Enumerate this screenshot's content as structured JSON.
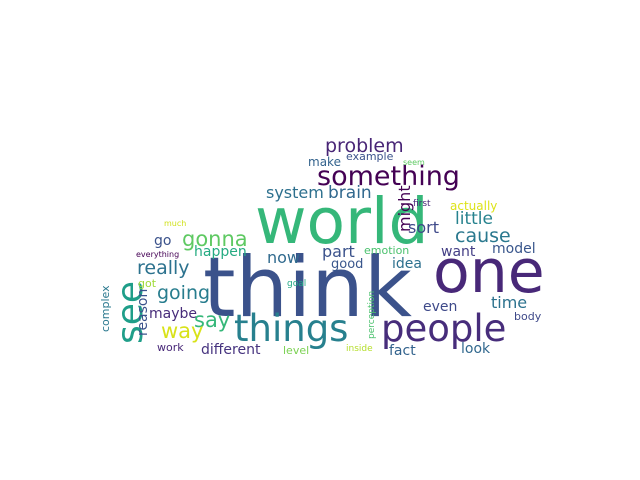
{
  "words": [
    {
      "text": "think",
      "color": "#3b528b",
      "orientation": "horizontal"
    },
    {
      "text": "world",
      "color": "#35b779",
      "orientation": "horizontal"
    },
    {
      "text": "one",
      "color": "#482878",
      "orientation": "horizontal"
    },
    {
      "text": "people",
      "color": "#472d7b",
      "orientation": "horizontal"
    },
    {
      "text": "things",
      "color": "#27808e",
      "orientation": "horizontal"
    },
    {
      "text": "see",
      "color": "#1f9e89",
      "orientation": "vertical"
    },
    {
      "text": "something",
      "color": "#440154",
      "orientation": "horizontal"
    },
    {
      "text": "problem",
      "color": "#482576",
      "orientation": "horizontal"
    },
    {
      "text": "gonna",
      "color": "#5ec962",
      "orientation": "horizontal"
    },
    {
      "text": "say",
      "color": "#35b779",
      "orientation": "horizontal"
    },
    {
      "text": "way",
      "color": "#d8e219",
      "orientation": "horizontal"
    },
    {
      "text": "really",
      "color": "#2c728e",
      "orientation": "horizontal"
    },
    {
      "text": "going",
      "color": "#287d8e",
      "orientation": "horizontal"
    },
    {
      "text": "cause",
      "color": "#2a788e",
      "orientation": "horizontal"
    },
    {
      "text": "little",
      "color": "#26828e",
      "orientation": "horizontal"
    },
    {
      "text": "brain",
      "color": "#31688e",
      "orientation": "horizontal"
    },
    {
      "text": "system",
      "color": "#2d708e",
      "orientation": "horizontal"
    },
    {
      "text": "might",
      "color": "#440154",
      "orientation": "vertical"
    },
    {
      "text": "sort",
      "color": "#3e4989",
      "orientation": "horizontal"
    },
    {
      "text": "part",
      "color": "#3b528b",
      "orientation": "horizontal"
    },
    {
      "text": "now",
      "color": "#306a8e",
      "orientation": "horizontal"
    },
    {
      "text": "time",
      "color": "#2c728e",
      "orientation": "horizontal"
    },
    {
      "text": "model",
      "color": "#39568c",
      "orientation": "horizontal"
    },
    {
      "text": "happen",
      "color": "#25ab82",
      "orientation": "horizontal"
    },
    {
      "text": "reason",
      "color": "#3b528b",
      "orientation": "vertical"
    },
    {
      "text": "maybe",
      "color": "#472c7a",
      "orientation": "horizontal"
    },
    {
      "text": "different",
      "color": "#46337f",
      "orientation": "horizontal"
    },
    {
      "text": "make",
      "color": "#33638d",
      "orientation": "horizontal"
    },
    {
      "text": "want",
      "color": "#433e85",
      "orientation": "horizontal"
    },
    {
      "text": "idea",
      "color": "#2d708e",
      "orientation": "horizontal"
    },
    {
      "text": "even",
      "color": "#3e4989",
      "orientation": "horizontal"
    },
    {
      "text": "look",
      "color": "#31688e",
      "orientation": "horizontal"
    },
    {
      "text": "fact",
      "color": "#33638d",
      "orientation": "horizontal"
    },
    {
      "text": "go",
      "color": "#3b528b",
      "orientation": "horizontal"
    },
    {
      "text": "good",
      "color": "#39568c",
      "orientation": "horizontal"
    },
    {
      "text": "example",
      "color": "#3b528b",
      "orientation": "horizontal"
    },
    {
      "text": "actually",
      "color": "#dde318",
      "orientation": "horizontal"
    },
    {
      "text": "emotion",
      "color": "#4ac16d",
      "orientation": "horizontal"
    },
    {
      "text": "got",
      "color": "#a0da39",
      "orientation": "horizontal"
    },
    {
      "text": "complex",
      "color": "#2a788e",
      "orientation": "vertical"
    },
    {
      "text": "work",
      "color": "#482878",
      "orientation": "horizontal"
    },
    {
      "text": "level",
      "color": "#7ad151",
      "orientation": "horizontal"
    },
    {
      "text": "perception",
      "color": "#4ac16d",
      "orientation": "vertical"
    },
    {
      "text": "inside",
      "color": "#b5de2b",
      "orientation": "horizontal"
    },
    {
      "text": "body",
      "color": "#3e4989",
      "orientation": "horizontal"
    },
    {
      "text": "goal",
      "color": "#22a884",
      "orientation": "horizontal"
    },
    {
      "text": "first",
      "color": "#482878",
      "orientation": "horizontal"
    },
    {
      "text": "seem",
      "color": "#5ec962",
      "orientation": "horizontal"
    },
    {
      "text": "much",
      "color": "#d0e11c",
      "orientation": "horizontal"
    },
    {
      "text": "everything",
      "color": "#440154",
      "orientation": "horizontal"
    }
  ]
}
